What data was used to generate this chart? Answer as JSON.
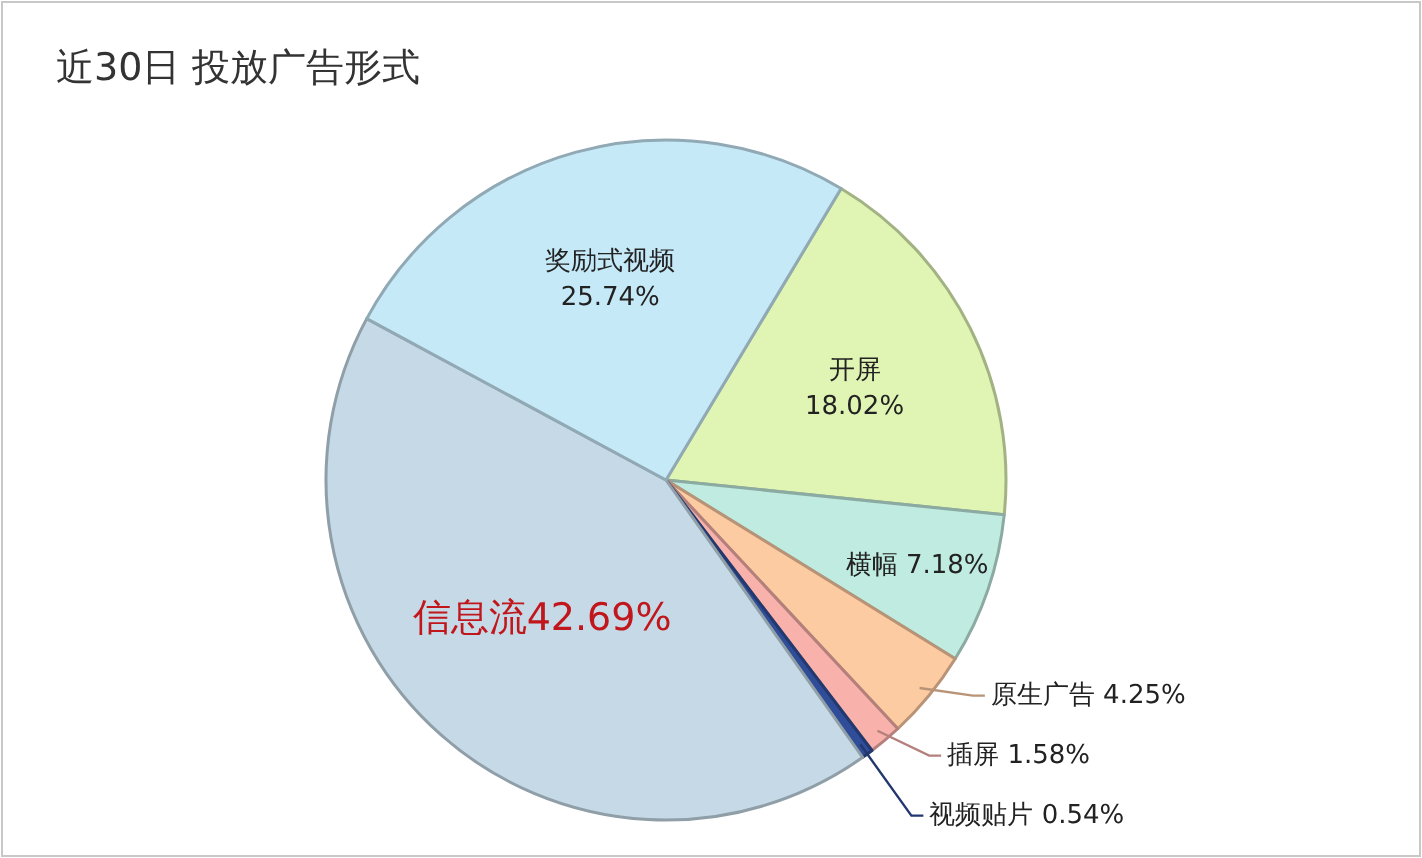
{
  "chart_data": {
    "type": "pie",
    "title": "近30日 投放广告形式",
    "categories": [
      "开屏",
      "横幅",
      "原生广告",
      "插屏",
      "视频贴片",
      "信息流",
      "奖励式视频"
    ],
    "values": [
      18.02,
      7.18,
      4.25,
      1.58,
      0.54,
      42.69,
      25.74
    ],
    "value_labels": [
      "18.02%",
      "7.18%",
      "4.25%",
      "1.58%",
      "0.54%",
      "42.69%",
      "25.74%"
    ],
    "colors": [
      "#e0f5b4",
      "#c0ebe0",
      "#fdcba2",
      "#f8b1ab",
      "#2f4d98",
      "#c5dae6",
      "#c6e9f8"
    ]
  }
}
